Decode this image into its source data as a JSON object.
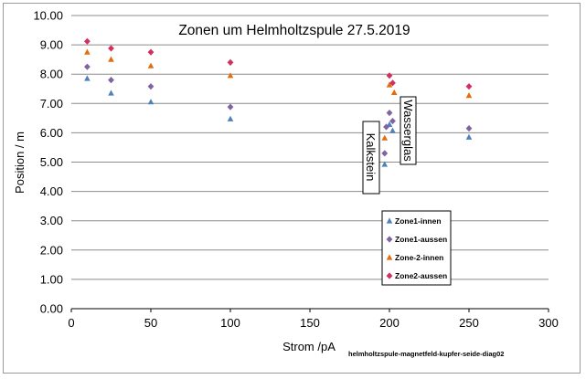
{
  "chart_data": {
    "type": "scatter",
    "title": "Zonen um Helmholtzspule  27.5.2019",
    "xlabel": "Strom /pA",
    "ylabel": "Position / m",
    "xlim": [
      0,
      300
    ],
    "ylim": [
      0,
      10
    ],
    "x_ticks": [
      "0",
      "50",
      "100",
      "150",
      "200",
      "250",
      "300"
    ],
    "y_ticks": [
      "0.00",
      "1.00",
      "2.00",
      "3.00",
      "4.00",
      "5.00",
      "6.00",
      "7.00",
      "8.00",
      "9.00",
      "10.00"
    ],
    "grid": "horizontal",
    "legend_position": "lower-right",
    "series": [
      {
        "name": "Zone1-innen",
        "marker": "triangle",
        "color": "#4f81bd",
        "points": [
          [
            10,
            7.85
          ],
          [
            25,
            7.35
          ],
          [
            50,
            7.05
          ],
          [
            100,
            6.47
          ],
          [
            197,
            4.92
          ],
          [
            200,
            6.28
          ],
          [
            202,
            6.07
          ],
          [
            250,
            5.85
          ]
        ]
      },
      {
        "name": "Zone1-aussen",
        "marker": "diamond",
        "color": "#8064a2",
        "points": [
          [
            10,
            8.25
          ],
          [
            25,
            7.8
          ],
          [
            50,
            7.58
          ],
          [
            100,
            6.88
          ],
          [
            197,
            5.3
          ],
          [
            198,
            6.2
          ],
          [
            200,
            6.68
          ],
          [
            202,
            6.4
          ],
          [
            250,
            6.15
          ]
        ]
      },
      {
        "name": "Zone-2-innen",
        "marker": "triangle",
        "color": "#e46c0a",
        "points": [
          [
            10,
            8.75
          ],
          [
            25,
            8.5
          ],
          [
            50,
            8.28
          ],
          [
            100,
            7.95
          ],
          [
            197,
            5.82
          ],
          [
            200,
            7.63
          ],
          [
            203,
            7.37
          ],
          [
            250,
            7.27
          ]
        ]
      },
      {
        "name": "Zone2-aussen",
        "marker": "diamond",
        "color": "#d0315f",
        "points": [
          [
            10,
            9.12
          ],
          [
            25,
            8.88
          ],
          [
            50,
            8.75
          ],
          [
            100,
            8.4
          ],
          [
            200,
            7.95
          ],
          [
            202,
            7.7
          ],
          [
            250,
            7.58
          ]
        ]
      }
    ],
    "annotations": [
      {
        "text": "Kalkstein",
        "rotation": "vertical-down"
      },
      {
        "text": "Wasserglas",
        "rotation": "vertical-down"
      }
    ],
    "footnote": "helmholtzspule-magnetfeld-kupfer-seide-diag02"
  }
}
